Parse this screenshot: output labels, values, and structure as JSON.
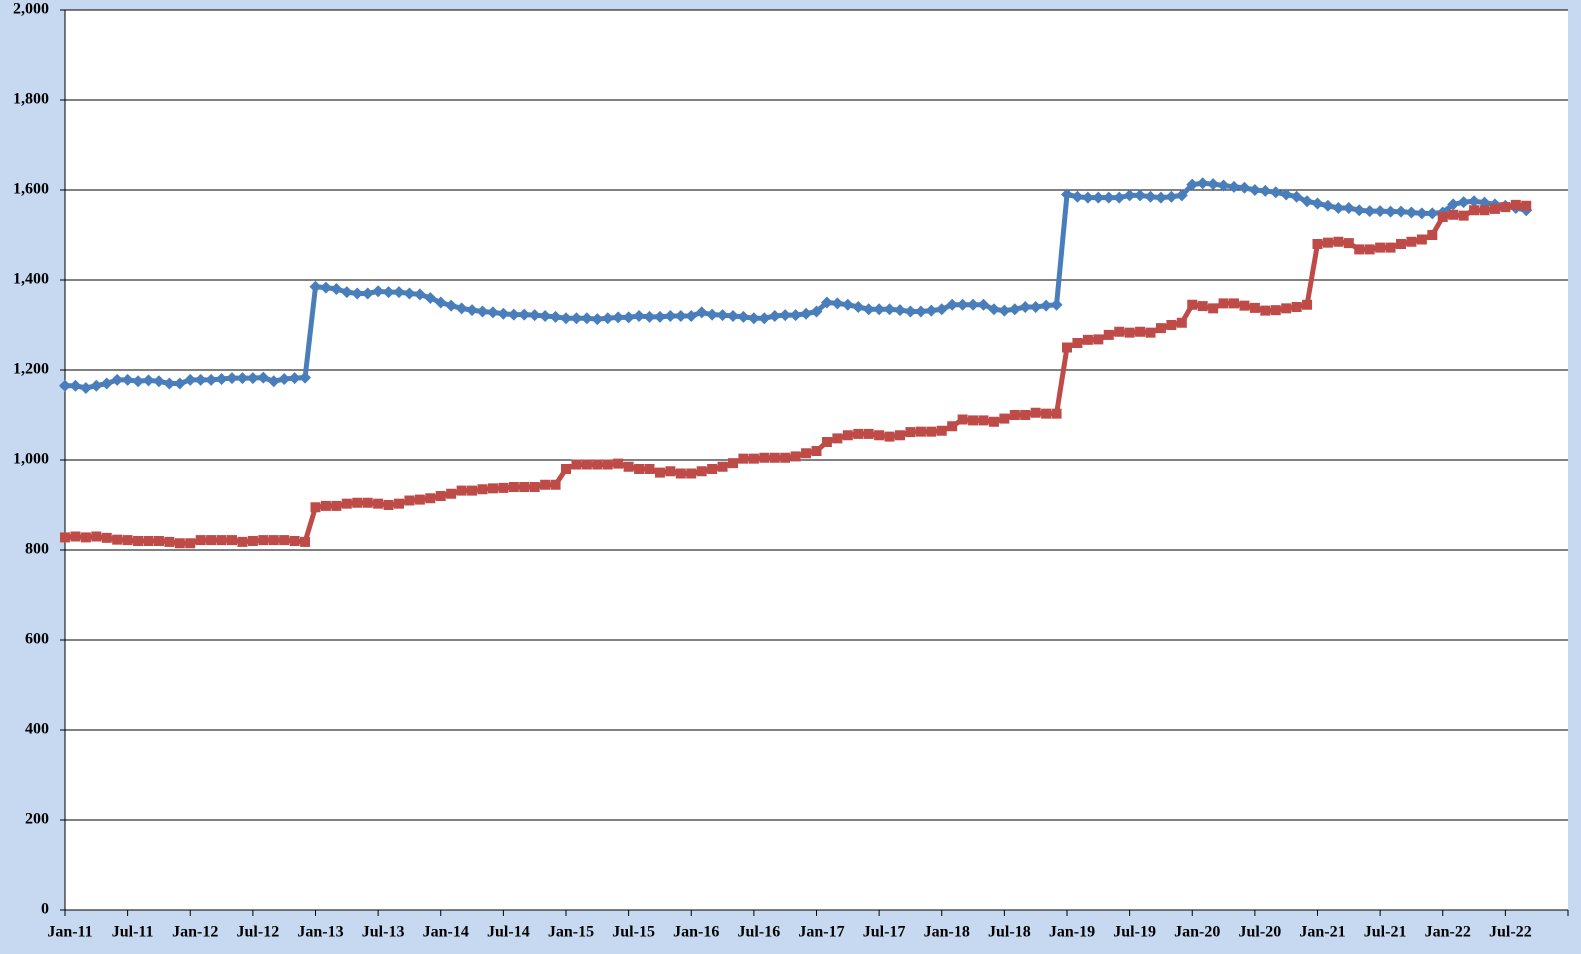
{
  "chart_data": {
    "type": "line",
    "categories": [
      "Jan-11",
      null,
      null,
      null,
      null,
      null,
      "Jul-11",
      null,
      null,
      null,
      null,
      null,
      "Jan-12",
      null,
      null,
      null,
      null,
      null,
      "Jul-12",
      null,
      null,
      null,
      null,
      null,
      "Jan-13",
      null,
      null,
      null,
      null,
      null,
      "Jul-13",
      null,
      null,
      null,
      null,
      null,
      "Jan-14",
      null,
      null,
      null,
      null,
      null,
      "Jul-14",
      null,
      null,
      null,
      null,
      null,
      "Jan-15",
      null,
      null,
      null,
      null,
      null,
      "Jul-15",
      null,
      null,
      null,
      null,
      null,
      "Jan-16",
      null,
      null,
      null,
      null,
      null,
      "Jul-16",
      null,
      null,
      null,
      null,
      null,
      "Jan-17",
      null,
      null,
      null,
      null,
      null,
      "Jul-17",
      null,
      null,
      null,
      null,
      null,
      "Jan-18",
      null,
      null,
      null,
      null,
      null,
      "Jul-18",
      null,
      null,
      null,
      null,
      null,
      "Jan-19",
      null,
      null,
      null,
      null,
      null,
      "Jul-19",
      null,
      null,
      null,
      null,
      null,
      "Jan-20",
      null,
      null,
      null,
      null,
      null,
      "Jul-20",
      null,
      null,
      null,
      null,
      null,
      "Jan-21",
      null,
      null,
      null,
      null,
      null,
      "Jul-21",
      null,
      null,
      null,
      null,
      null,
      "Jan-22",
      null,
      null,
      null,
      null,
      null,
      "Jul-22",
      null,
      null
    ],
    "series": [
      {
        "color": "#4a7ebb",
        "marker": "diamond",
        "values": [
          1165,
          1165,
          1160,
          1165,
          1170,
          1178,
          1178,
          1175,
          1177,
          1175,
          1170,
          1170,
          1178,
          1178,
          1178,
          1180,
          1182,
          1182,
          1182,
          1183,
          1175,
          1180,
          1182,
          1183,
          1385,
          1383,
          1380,
          1373,
          1370,
          1370,
          1375,
          1373,
          1373,
          1370,
          1368,
          1360,
          1350,
          1343,
          1337,
          1333,
          1330,
          1328,
          1325,
          1323,
          1323,
          1322,
          1320,
          1318,
          1315,
          1315,
          1315,
          1313,
          1315,
          1317,
          1317,
          1320,
          1318,
          1318,
          1320,
          1320,
          1320,
          1328,
          1323,
          1322,
          1320,
          1318,
          1315,
          1315,
          1320,
          1322,
          1322,
          1325,
          1330,
          1350,
          1348,
          1345,
          1340,
          1335,
          1335,
          1335,
          1333,
          1330,
          1330,
          1332,
          1335,
          1345,
          1345,
          1345,
          1345,
          1335,
          1332,
          1335,
          1340,
          1340,
          1343,
          1345,
          1590,
          1585,
          1583,
          1583,
          1583,
          1583,
          1588,
          1588,
          1585,
          1583,
          1585,
          1588,
          1612,
          1615,
          1613,
          1610,
          1607,
          1605,
          1600,
          1598,
          1595,
          1590,
          1585,
          1575,
          1570,
          1565,
          1560,
          1560,
          1555,
          1553,
          1553,
          1552,
          1552,
          1550,
          1548,
          1548,
          1550,
          1568,
          1573,
          1575,
          1572,
          1568,
          1565,
          1560,
          1555
        ]
      },
      {
        "color": "#be4b48",
        "marker": "square",
        "values": [
          828,
          830,
          828,
          830,
          827,
          823,
          822,
          820,
          820,
          820,
          818,
          815,
          815,
          822,
          822,
          822,
          822,
          818,
          820,
          822,
          822,
          822,
          820,
          818,
          895,
          898,
          898,
          903,
          905,
          905,
          903,
          900,
          903,
          910,
          912,
          915,
          920,
          925,
          932,
          932,
          935,
          937,
          938,
          940,
          940,
          940,
          945,
          945,
          980,
          990,
          990,
          990,
          990,
          992,
          985,
          980,
          980,
          972,
          975,
          970,
          970,
          975,
          980,
          985,
          993,
          1003,
          1003,
          1005,
          1005,
          1005,
          1008,
          1015,
          1020,
          1040,
          1048,
          1055,
          1058,
          1058,
          1055,
          1052,
          1055,
          1062,
          1063,
          1063,
          1065,
          1075,
          1090,
          1088,
          1088,
          1085,
          1092,
          1100,
          1100,
          1105,
          1103,
          1103,
          1250,
          1260,
          1267,
          1268,
          1278,
          1285,
          1283,
          1285,
          1283,
          1293,
          1300,
          1305,
          1345,
          1342,
          1337,
          1348,
          1348,
          1343,
          1338,
          1332,
          1333,
          1337,
          1340,
          1345,
          1480,
          1483,
          1485,
          1482,
          1468,
          1468,
          1472,
          1472,
          1480,
          1485,
          1490,
          1500,
          1540,
          1545,
          1543,
          1555,
          1555,
          1558,
          1562,
          1567,
          1565
        ]
      }
    ],
    "ylim": [
      0,
      2000
    ],
    "yticks": [
      0,
      200,
      400,
      600,
      800,
      {
        "value": 1000,
        "label": "1,000"
      },
      {
        "value": 1200,
        "label": "1,200"
      },
      {
        "value": 1400,
        "label": "1,400"
      },
      {
        "value": 1600,
        "label": "1,600"
      },
      {
        "value": 1800,
        "label": "1,800"
      },
      {
        "value": 2000,
        "label": "2,000"
      }
    ],
    "grid": true
  }
}
